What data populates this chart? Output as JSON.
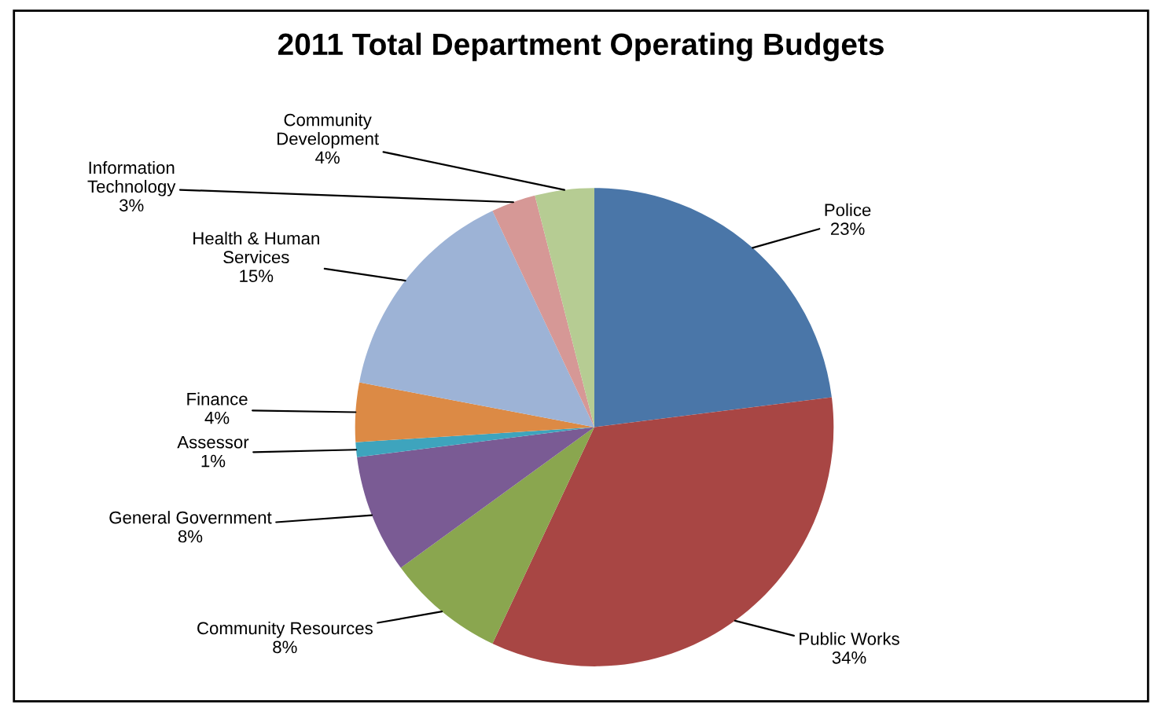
{
  "chart_data": {
    "type": "pie",
    "title": "2011 Total Department Operating Budgets",
    "categories": [
      "Police",
      "Public Works",
      "Community Resources",
      "General Government",
      "Assessor",
      "Finance",
      "Health & Human\nServices",
      "Information\nTechnology",
      "Community\nDevelopment"
    ],
    "values": [
      23,
      34,
      8,
      8,
      1,
      4,
      15,
      3,
      4
    ],
    "value_labels": [
      "23%",
      "34%",
      "8%",
      "8%",
      "1%",
      "4%",
      "15%",
      "3%",
      "4%"
    ],
    "colors": [
      "#4a76a8",
      "#a84644",
      "#8aa64f",
      "#7a5b94",
      "#3ea4bd",
      "#dc8a45",
      "#9db3d6",
      "#d69896",
      "#b6cc93"
    ],
    "legend": false
  }
}
